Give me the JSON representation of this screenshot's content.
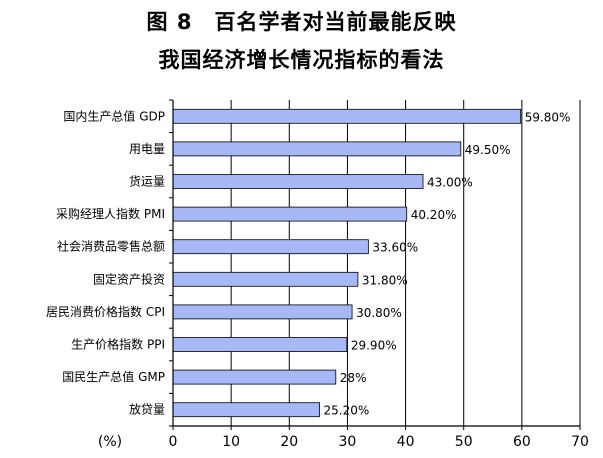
{
  "chart_data": {
    "type": "bar",
    "orientation": "horizontal",
    "title_line1": "图 8　百名学者对当前最能反映",
    "title_line2": "我国经济增长情况指标的看法",
    "xlabel": "(%)",
    "xlim": [
      0,
      70
    ],
    "xticks": [
      0,
      10,
      20,
      30,
      40,
      50,
      60,
      70
    ],
    "grid": "vertical",
    "categories": [
      "国内生产总值 GDP",
      "用电量",
      "货运量",
      "采购经理人指数 PMI",
      "社会消费品零售总额",
      "固定资产投资",
      "居民消费价格指数 CPI",
      "生产价格指数 PPI",
      "国民生产总值 GMP",
      "放贷量"
    ],
    "values": [
      59.8,
      49.5,
      43.0,
      40.2,
      33.6,
      31.8,
      30.8,
      29.9,
      28,
      25.2
    ],
    "value_labels": [
      "59.80%",
      "49.50%",
      "43.00%",
      "40.20%",
      "33.60%",
      "31.80%",
      "30.80%",
      "29.90%",
      "28%",
      "25.20%"
    ],
    "colors": {
      "bar": "#a6b8f5",
      "bar_edge": "#000000"
    }
  }
}
